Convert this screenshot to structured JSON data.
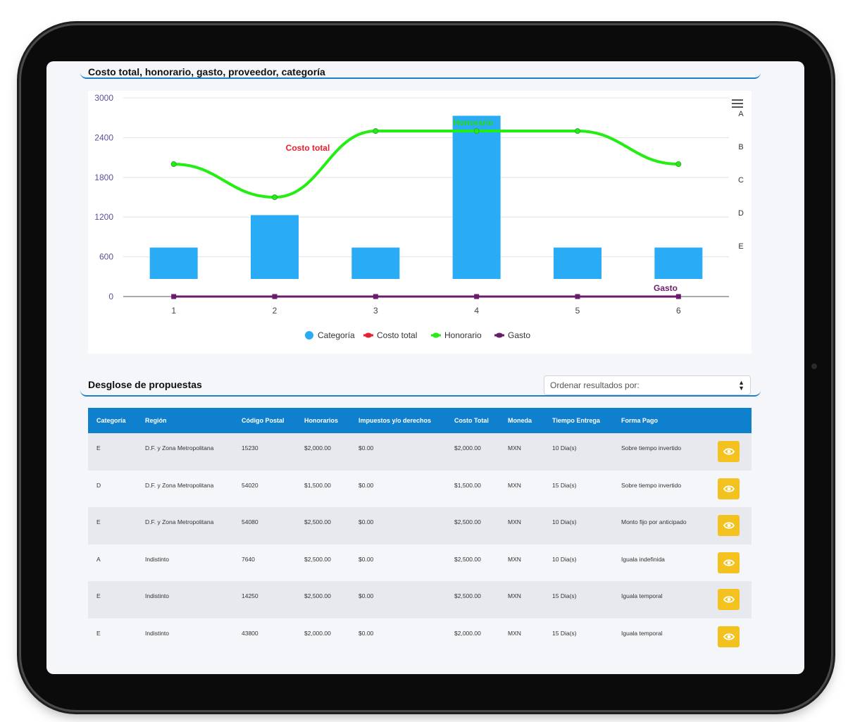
{
  "chart_section": {
    "title": "Costo total, honorario, gasto, proveedor, categoría"
  },
  "chart_data": {
    "type": "bar",
    "categories": [
      "1",
      "2",
      "3",
      "4",
      "5",
      "6"
    ],
    "series": [
      {
        "name": "Categoría",
        "kind": "bar",
        "color": "#29abf5",
        "values": [
          740,
          1230,
          740,
          2730,
          740,
          740
        ]
      },
      {
        "name": "Costo total",
        "kind": "line",
        "color": "#e8212f",
        "values": [
          null,
          null,
          null,
          null,
          null,
          null
        ]
      },
      {
        "name": "Honorario",
        "kind": "spline",
        "color": "#22ee11",
        "values": [
          2000,
          1500,
          2500,
          2500,
          2500,
          2000
        ]
      },
      {
        "name": "Gasto",
        "kind": "line",
        "color": "#6b1b6b",
        "values": [
          0,
          0,
          0,
          0,
          0,
          0
        ]
      }
    ],
    "ylim": [
      0,
      3000
    ],
    "yticks": [
      "0",
      "600",
      "1200",
      "1800",
      "2400",
      "3000"
    ],
    "right_axis_labels": [
      "A",
      "B",
      "C",
      "D",
      "E"
    ],
    "annotations": {
      "costo_total": "Costo total",
      "honorario": "Honorario",
      "gasto": "Gasto"
    },
    "legend_position": "bottom-center",
    "grid": true
  },
  "breakdown": {
    "title": "Desglose de propuestas",
    "sort_placeholder": "Ordenar resultados por:",
    "columns": [
      "Categoría",
      "Región",
      "Código Postal",
      "Honorarios",
      "Impuestos y/o derechos",
      "Costo Total",
      "Moneda",
      "Tiempo Entrega",
      "Forma Pago"
    ],
    "rows": [
      [
        "E",
        "D.F. y Zona Metropolitana",
        "15230",
        "$2,000.00",
        "$0.00",
        "$2,000.00",
        "MXN",
        "10 Dia(s)",
        "Sobre tiempo invertido"
      ],
      [
        "D",
        "D.F. y Zona Metropolitana",
        "54020",
        "$1,500.00",
        "$0.00",
        "$1,500.00",
        "MXN",
        "15 Dia(s)",
        "Sobre tiempo invertido"
      ],
      [
        "E",
        "D.F. y Zona Metropolitana",
        "54080",
        "$2,500.00",
        "$0.00",
        "$2,500.00",
        "MXN",
        "10 Dia(s)",
        "Monto fijo por anticipado"
      ],
      [
        "A",
        "Indistinto",
        "7640",
        "$2,500.00",
        "$0.00",
        "$2,500.00",
        "MXN",
        "10 Dia(s)",
        "Iguala indefinida"
      ],
      [
        "E",
        "Indistinto",
        "14250",
        "$2,500.00",
        "$0.00",
        "$2,500.00",
        "MXN",
        "15 Dia(s)",
        "Iguala temporal"
      ],
      [
        "E",
        "Indistinto",
        "43800",
        "$2,000.00",
        "$0.00",
        "$2,000.00",
        "MXN",
        "15 Dia(s)",
        "Iguala temporal"
      ]
    ],
    "action_icon": "eye-icon",
    "action_color": "#f4c21f",
    "header_color": "#0e80cd"
  }
}
